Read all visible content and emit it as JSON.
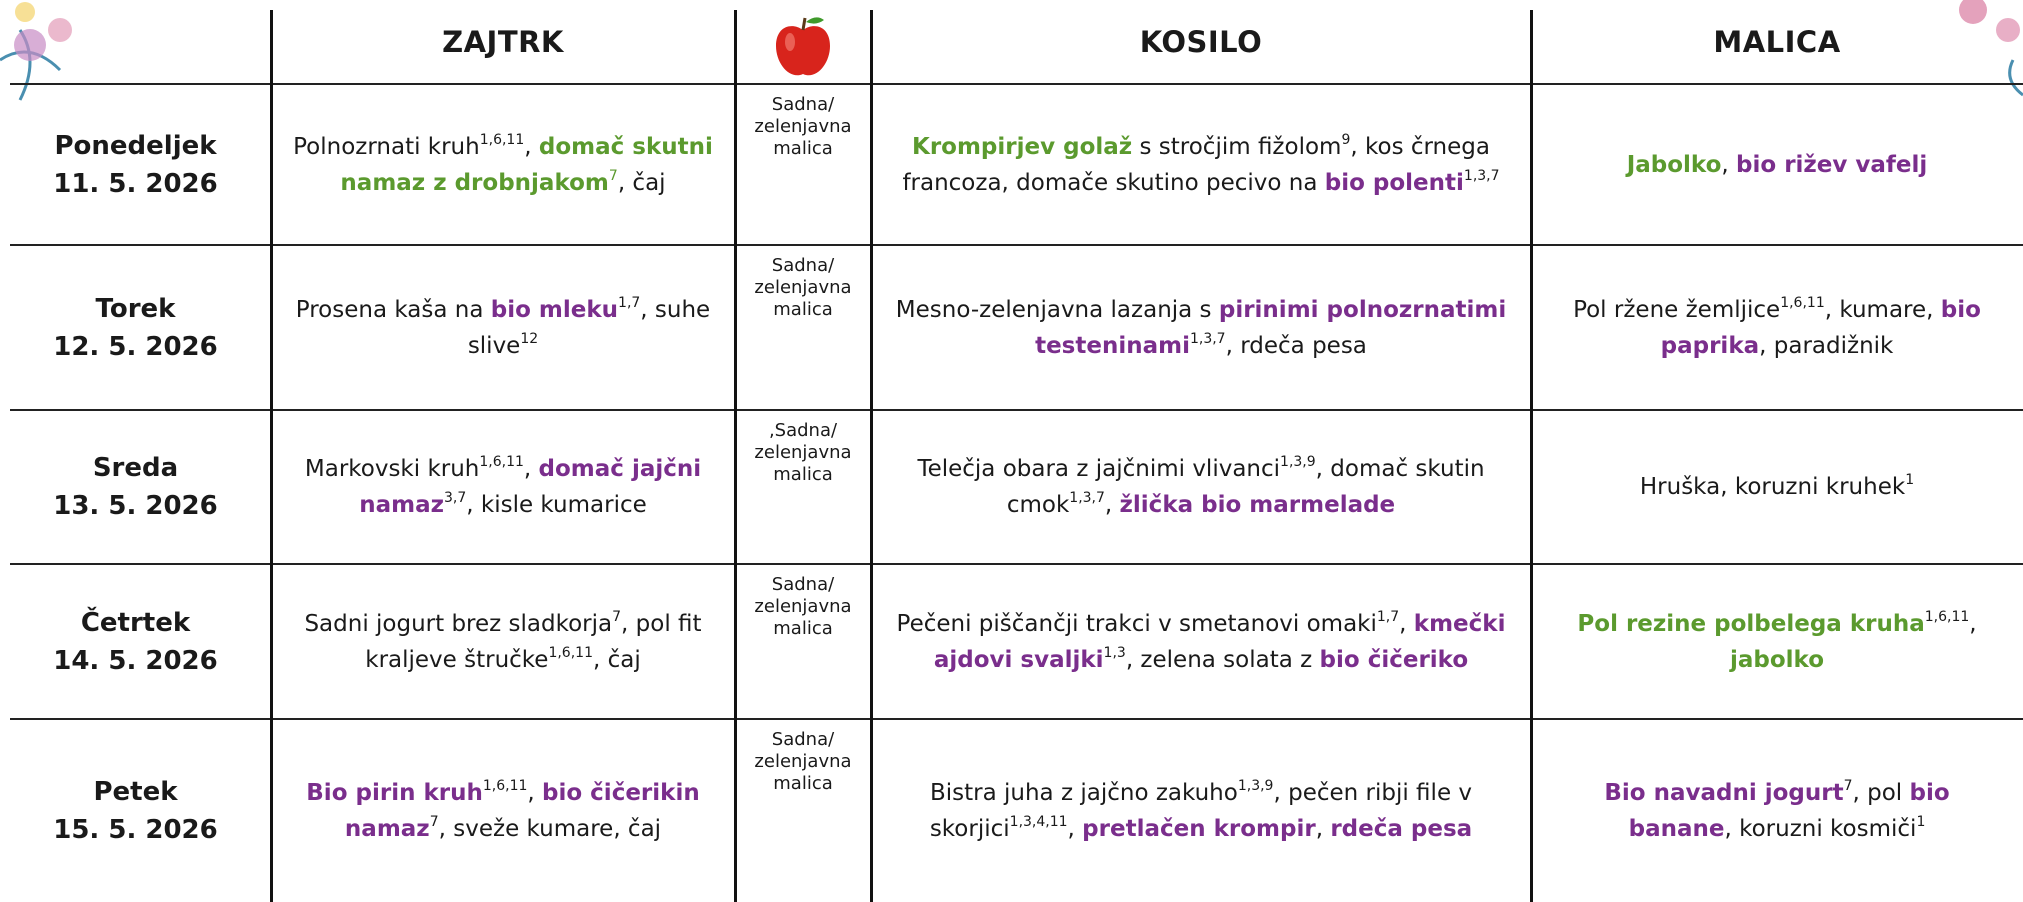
{
  "header": {
    "zajtrk": "ZAJTRK",
    "kosilo": "KOSILO",
    "malica": "MALICA"
  },
  "rows": [
    {
      "day": "Ponedeljek",
      "date": "11. 5. 2026",
      "zajtrk": [
        {
          "text": "Polnozrnati kruh"
        },
        {
          "sup": "1,6,11"
        },
        {
          "text": ", "
        },
        {
          "text": "domač skutni namaz z drobnjakom",
          "color": "#5b9a2e"
        },
        {
          "sup": "7",
          "color": "#5b9a2e"
        },
        {
          "text": ", čaj"
        }
      ],
      "sadje": [
        "Sadna/",
        "zelenjavna",
        "malica"
      ],
      "kosilo": [
        {
          "text": "Krompirjev golaž",
          "color": "#5b9a2e"
        },
        {
          "text": " s stročjim fižolom"
        },
        {
          "sup": "9"
        },
        {
          "text": ", kos črnega francoza, domače skutino pecivo na "
        },
        {
          "text": "bio polenti",
          "color": "#7a2e8c"
        },
        {
          "sup": "1,3,7"
        }
      ],
      "malica": [
        {
          "text": "Jabolko",
          "color": "#5b9a2e"
        },
        {
          "text": ",  "
        },
        {
          "text": "bio rižev vafelj",
          "color": "#7a2e8c"
        }
      ]
    },
    {
      "day": "Torek",
      "date": "12. 5. 2026",
      "zajtrk": [
        {
          "text": "Prosena kaša na "
        },
        {
          "text": "bio mleku",
          "color": "#7a2e8c"
        },
        {
          "sup": "1,7"
        },
        {
          "text": ", suhe slive"
        },
        {
          "sup": "12"
        }
      ],
      "sadje": [
        "Sadna/",
        "zelenjavna",
        "malica"
      ],
      "kosilo": [
        {
          "text": "Mesno-zelenjavna lazanja s "
        },
        {
          "text": "pirinimi polnozrnatimi testeninami",
          "color": "#7a2e8c"
        },
        {
          "sup": "1,3,7"
        },
        {
          "text": ", rdeča pesa"
        }
      ],
      "malica": [
        {
          "text": "Pol ržene žemljice"
        },
        {
          "sup": "1,6,11"
        },
        {
          "text": ", kumare, "
        },
        {
          "text": "bio paprika",
          "color": "#7a2e8c"
        },
        {
          "text": ", paradižnik"
        }
      ]
    },
    {
      "day": "Sreda",
      "date": "13. 5. 2026",
      "zajtrk": [
        {
          "text": "Markovski kruh"
        },
        {
          "sup": "1,6,11"
        },
        {
          "text": ", "
        },
        {
          "text": "domač jajčni namaz",
          "color": "#7a2e8c"
        },
        {
          "sup": "3,7"
        },
        {
          "text": ", kisle kumarice"
        }
      ],
      "sadje": [
        ",Sadna/",
        "zelenjavna",
        "malica"
      ],
      "kosilo": [
        {
          "text": "Telečja obara z jajčnimi vlivanci"
        },
        {
          "sup": "1,3,9"
        },
        {
          "text": ", domač skutin cmok"
        },
        {
          "sup": "1,3,7"
        },
        {
          "text": ", "
        },
        {
          "text": "žlička bio marmelade",
          "color": "#7a2e8c"
        }
      ],
      "malica": [
        {
          "text": "Hruška, koruzni kruhek"
        },
        {
          "sup": "1"
        }
      ]
    },
    {
      "day": "Četrtek",
      "date": "14. 5. 2026",
      "zajtrk": [
        {
          "text": "Sadni jogurt brez sladkorja"
        },
        {
          "sup": "7"
        },
        {
          "text": ", pol fit kraljeve štručke"
        },
        {
          "sup": "1,6,11"
        },
        {
          "text": ", čaj"
        }
      ],
      "sadje": [
        "Sadna/",
        "zelenjavna",
        "malica"
      ],
      "kosilo": [
        {
          "text": "Pečeni piščančji trakci v smetanovi omaki"
        },
        {
          "sup": "1,7"
        },
        {
          "text": ", "
        },
        {
          "text": "kmečki ajdovi svaljki",
          "color": "#7a2e8c"
        },
        {
          "sup": "1,3"
        },
        {
          "text": ", zelena solata z "
        },
        {
          "text": "bio čičeriko",
          "color": "#7a2e8c"
        }
      ],
      "malica": [
        {
          "text": "Pol rezine polbelega kruha",
          "color": "#5b9a2e"
        },
        {
          "sup": "1,6,11"
        },
        {
          "text": ", "
        },
        {
          "text": "jabolko",
          "color": "#5b9a2e"
        }
      ]
    },
    {
      "day": "Petek",
      "date": "15. 5. 2026",
      "zajtrk": [
        {
          "text": "Bio pirin kruh",
          "color": "#7a2e8c"
        },
        {
          "sup": "1,6,11"
        },
        {
          "text": ", "
        },
        {
          "text": "bio čičerikin namaz",
          "color": "#7a2e8c"
        },
        {
          "sup": "7"
        },
        {
          "text": ", sveže kumare, čaj"
        }
      ],
      "sadje": [
        "Sadna/",
        "zelenjavna",
        "malica"
      ],
      "kosilo": [
        {
          "text": "Bistra juha z jajčno zakuho"
        },
        {
          "sup": "1,3,9"
        },
        {
          "text": ", pečen ribji file v skorjici"
        },
        {
          "sup": "1,3,4,11"
        },
        {
          "text": ", "
        },
        {
          "text": "pretlačen krompir",
          "color": "#7a2e8c"
        },
        {
          "text": ", "
        },
        {
          "text": "rdeča pesa",
          "color": "#7a2e8c"
        }
      ],
      "malica": [
        {
          "text": "Bio navadni jogurt",
          "color": "#7a2e8c"
        },
        {
          "sup": "7"
        },
        {
          "text": ", pol "
        },
        {
          "text": "bio banane",
          "color": "#7a2e8c"
        },
        {
          "text": ", koruzni kosmiči"
        },
        {
          "sup": "1"
        }
      ]
    }
  ]
}
